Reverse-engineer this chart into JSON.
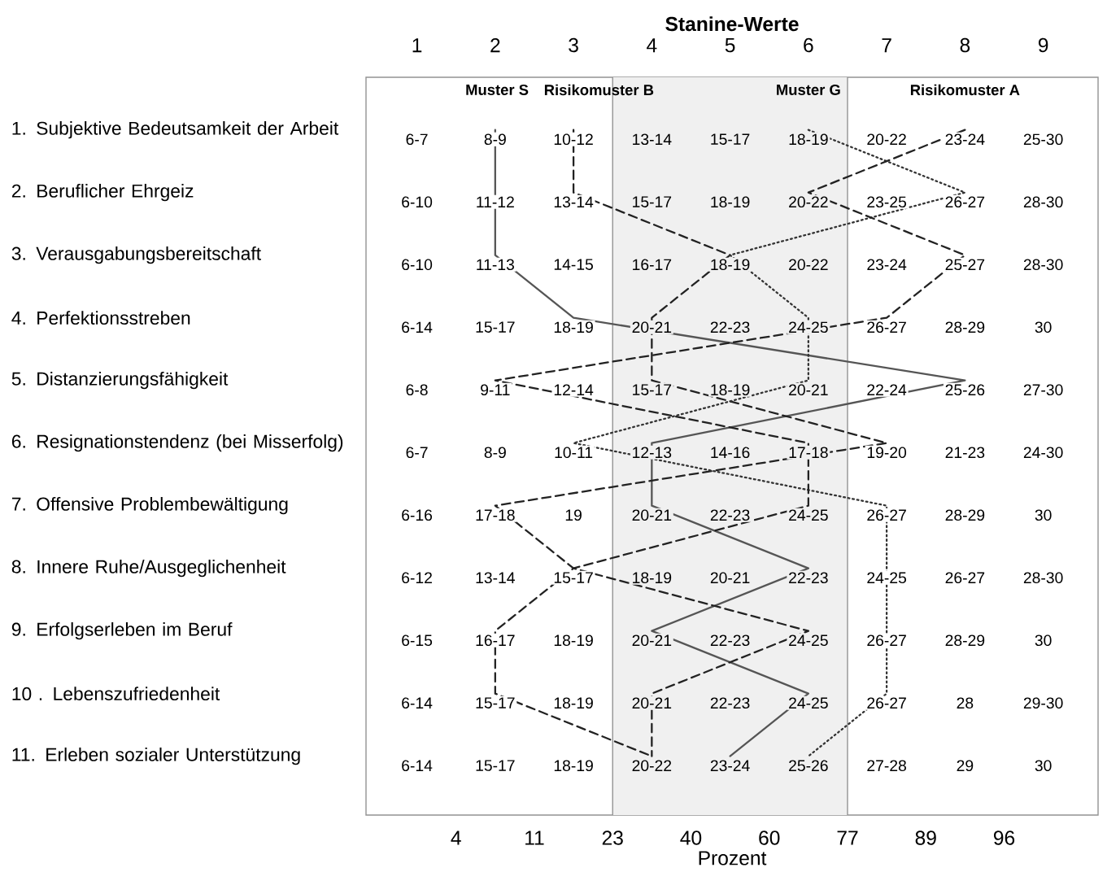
{
  "chart_data": {
    "type": "line",
    "orientation": "horizontal",
    "xlabel": "Stanine-Werte",
    "categories": [
      "1. Subjektive Bedeutsamkeit der Arbeit",
      "2. Beruflicher Ehrgeiz",
      "3. Verausgabungsbereitschaft",
      "4. Perfektionsstreben",
      "5. Distanzierungsfähigkeit",
      "6. Resignationstendenz (bei Misserfolg)",
      "7. Offensive Problembewältigung",
      "8. Innere Ruhe/Ausgeglichenheit",
      "9. Erfolgserleben im Beruf",
      "10 . Lebenszufriedenheit",
      "11. Erleben sozialer Unterstützung"
    ],
    "series": [
      {
        "name": "Muster S",
        "color": "#555555",
        "line_style": "solid",
        "values": [
          2,
          2,
          2,
          3,
          8,
          4,
          4,
          6,
          4,
          6,
          5
        ]
      },
      {
        "name": "Risikomuster B",
        "color": "#222222",
        "line_style": "dashed",
        "values": [
          3,
          3,
          5,
          4,
          4,
          7,
          2,
          3,
          2,
          2,
          4
        ]
      },
      {
        "name": "Muster G",
        "color": "#333333",
        "line_style": "dotted",
        "values": [
          6,
          8,
          5,
          6,
          6,
          3,
          7,
          7,
          7,
          7,
          6
        ]
      },
      {
        "name": "Risikomuster A",
        "color": "#222222",
        "line_style": "dashed",
        "values": [
          8,
          6,
          8,
          7,
          2,
          6,
          6,
          3,
          6,
          4,
          4
        ]
      }
    ],
    "xlim": [
      0.35,
      9.7
    ],
    "xticks": [
      1,
      2,
      3,
      4,
      5,
      6,
      7,
      8,
      9
    ],
    "bands": [
      {
        "axis": "x",
        "from": 3.5,
        "to": 6.5,
        "color": "#f0f0f0"
      }
    ],
    "ref_lines": [
      {
        "axis": "x",
        "value": 3.5,
        "color": "#939393"
      },
      {
        "axis": "x",
        "value": 6.5,
        "color": "#939393"
      }
    ],
    "annotations": [
      "6-7",
      "8-9",
      "10-12",
      "13-14",
      "15-17",
      "18-19",
      "20-22",
      "23-24",
      "25-30",
      "6-10",
      "11-12",
      "13-14",
      "15-17",
      "18-19",
      "20-22",
      "23-25",
      "26-27",
      "28-30",
      "6-10",
      "11-13",
      "14-15",
      "16-17",
      "18-19",
      "20-22",
      "23-24",
      "25-27",
      "28-30",
      "6-14",
      "15-17",
      "18-19",
      "20-21",
      "22-23",
      "24-25",
      "26-27",
      "28-29",
      "30",
      "6-8",
      "9-11",
      "12-14",
      "15-17",
      "18-19",
      "20-21",
      "22-24",
      "25-26",
      "27-30",
      "6-7",
      "8-9",
      "10-11",
      "12-13",
      "14-16",
      "17-18",
      "19-20",
      "21-23",
      "24-30",
      "6-16",
      "17-18",
      "19",
      "20-21",
      "22-23",
      "24-25",
      "26-27",
      "28-29",
      "30",
      "6-12",
      "13-14",
      "15-17",
      "18-19",
      "20-21",
      "22-23",
      "24-25",
      "26-27",
      "28-30",
      "6-15",
      "16-17",
      "18-19",
      "20-21",
      "22-23",
      "24-25",
      "26-27",
      "28-29",
      "30",
      "6-14",
      "15-17",
      "18-19",
      "20-21",
      "22-23",
      "24-25",
      "26-27",
      "28",
      "29-30",
      "6-14",
      "15-17",
      "18-19",
      "20-22",
      "23-24",
      "25-26",
      "27-28",
      "29",
      "30",
      "4",
      "11",
      "23",
      "40",
      "60",
      "77",
      "89",
      "96",
      "Prozent"
    ]
  }
}
